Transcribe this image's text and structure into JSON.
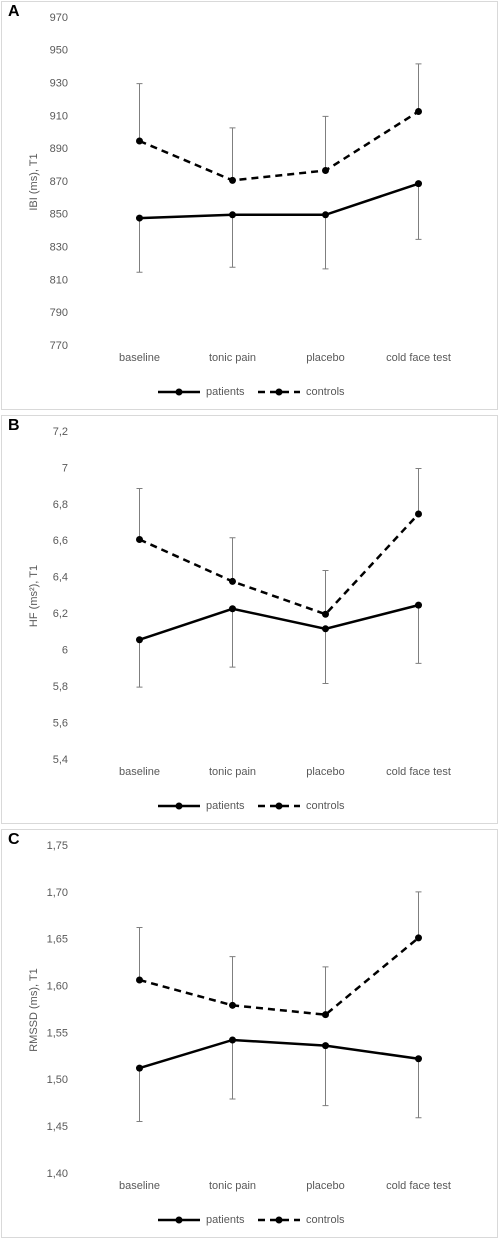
{
  "chart_data": [
    {
      "type": "line",
      "label": "A",
      "y_label": "IBI (ms), T1",
      "categories": [
        "baseline",
        "tonic pain",
        "placebo",
        "cold face test"
      ],
      "series": [
        {
          "name": "patients",
          "color": "#000000",
          "line_style": "solid",
          "error_bars": "lower",
          "values": [
            848,
            850,
            850,
            869
          ],
          "errors": [
            33,
            32,
            33,
            34
          ]
        },
        {
          "name": "controls",
          "color": "#000000",
          "line_style": "dashed",
          "error_bars": "upper",
          "values": [
            895,
            871,
            877,
            913
          ],
          "errors": [
            35,
            32,
            33,
            29
          ]
        }
      ],
      "ylim": [
        770,
        970
      ],
      "yticks": [
        770,
        790,
        810,
        830,
        850,
        870,
        890,
        910,
        930,
        950,
        970
      ]
    },
    {
      "type": "line",
      "label": "B",
      "y_label": "HF (ms²), T1",
      "categories": [
        "baseline",
        "tonic pain",
        "placebo",
        "cold face test"
      ],
      "series": [
        {
          "name": "patients",
          "color": "#000000",
          "line_style": "solid",
          "error_bars": "lower",
          "values": [
            6.06,
            6.23,
            6.12,
            6.25
          ],
          "errors": [
            0.26,
            0.32,
            0.3,
            0.32
          ]
        },
        {
          "name": "controls",
          "color": "#000000",
          "line_style": "dashed",
          "error_bars": "upper",
          "values": [
            6.61,
            6.38,
            6.2,
            6.75
          ],
          "errors": [
            0.28,
            0.24,
            0.24,
            0.25
          ]
        }
      ],
      "ylim": [
        5.4,
        7.2
      ],
      "yticks": [
        {
          "value": 5.4,
          "label": "5,4"
        },
        {
          "value": 5.6,
          "label": "5,6"
        },
        {
          "value": 5.8,
          "label": "5,8"
        },
        6,
        {
          "value": 6.2,
          "label": "6,2"
        },
        {
          "value": 6.4,
          "label": "6,4"
        },
        {
          "value": 6.6,
          "label": "6,6"
        },
        {
          "value": 6.8,
          "label": "6,8"
        },
        7,
        {
          "value": 7.2,
          "label": "7,2"
        }
      ]
    },
    {
      "type": "line",
      "label": "C",
      "y_label": "RMSSD (ms), T1",
      "categories": [
        "baseline",
        "tonic pain",
        "placebo",
        "cold face test"
      ],
      "series": [
        {
          "name": "patients",
          "color": "#000000",
          "line_style": "solid",
          "error_bars": "lower",
          "values": [
            1.513,
            1.543,
            1.537,
            1.523
          ],
          "errors": [
            0.057,
            0.063,
            0.064,
            0.063
          ]
        },
        {
          "name": "controls",
          "color": "#000000",
          "line_style": "dashed",
          "error_bars": "upper",
          "values": [
            1.607,
            1.58,
            1.57,
            1.652
          ],
          "errors": [
            0.056,
            0.052,
            0.051,
            0.049
          ]
        }
      ],
      "ylim": [
        1.4,
        1.75
      ],
      "yticks": [
        {
          "value": 1.4,
          "label": "1,40"
        },
        {
          "value": 1.45,
          "label": "1,45"
        },
        {
          "value": 1.5,
          "label": "1,50"
        },
        {
          "value": 1.55,
          "label": "1,55"
        },
        {
          "value": 1.6,
          "label": "1,60"
        },
        {
          "value": 1.65,
          "label": "1,65"
        },
        {
          "value": 1.7,
          "label": "1,70"
        },
        {
          "value": 1.75,
          "label": "1,75"
        }
      ]
    }
  ]
}
